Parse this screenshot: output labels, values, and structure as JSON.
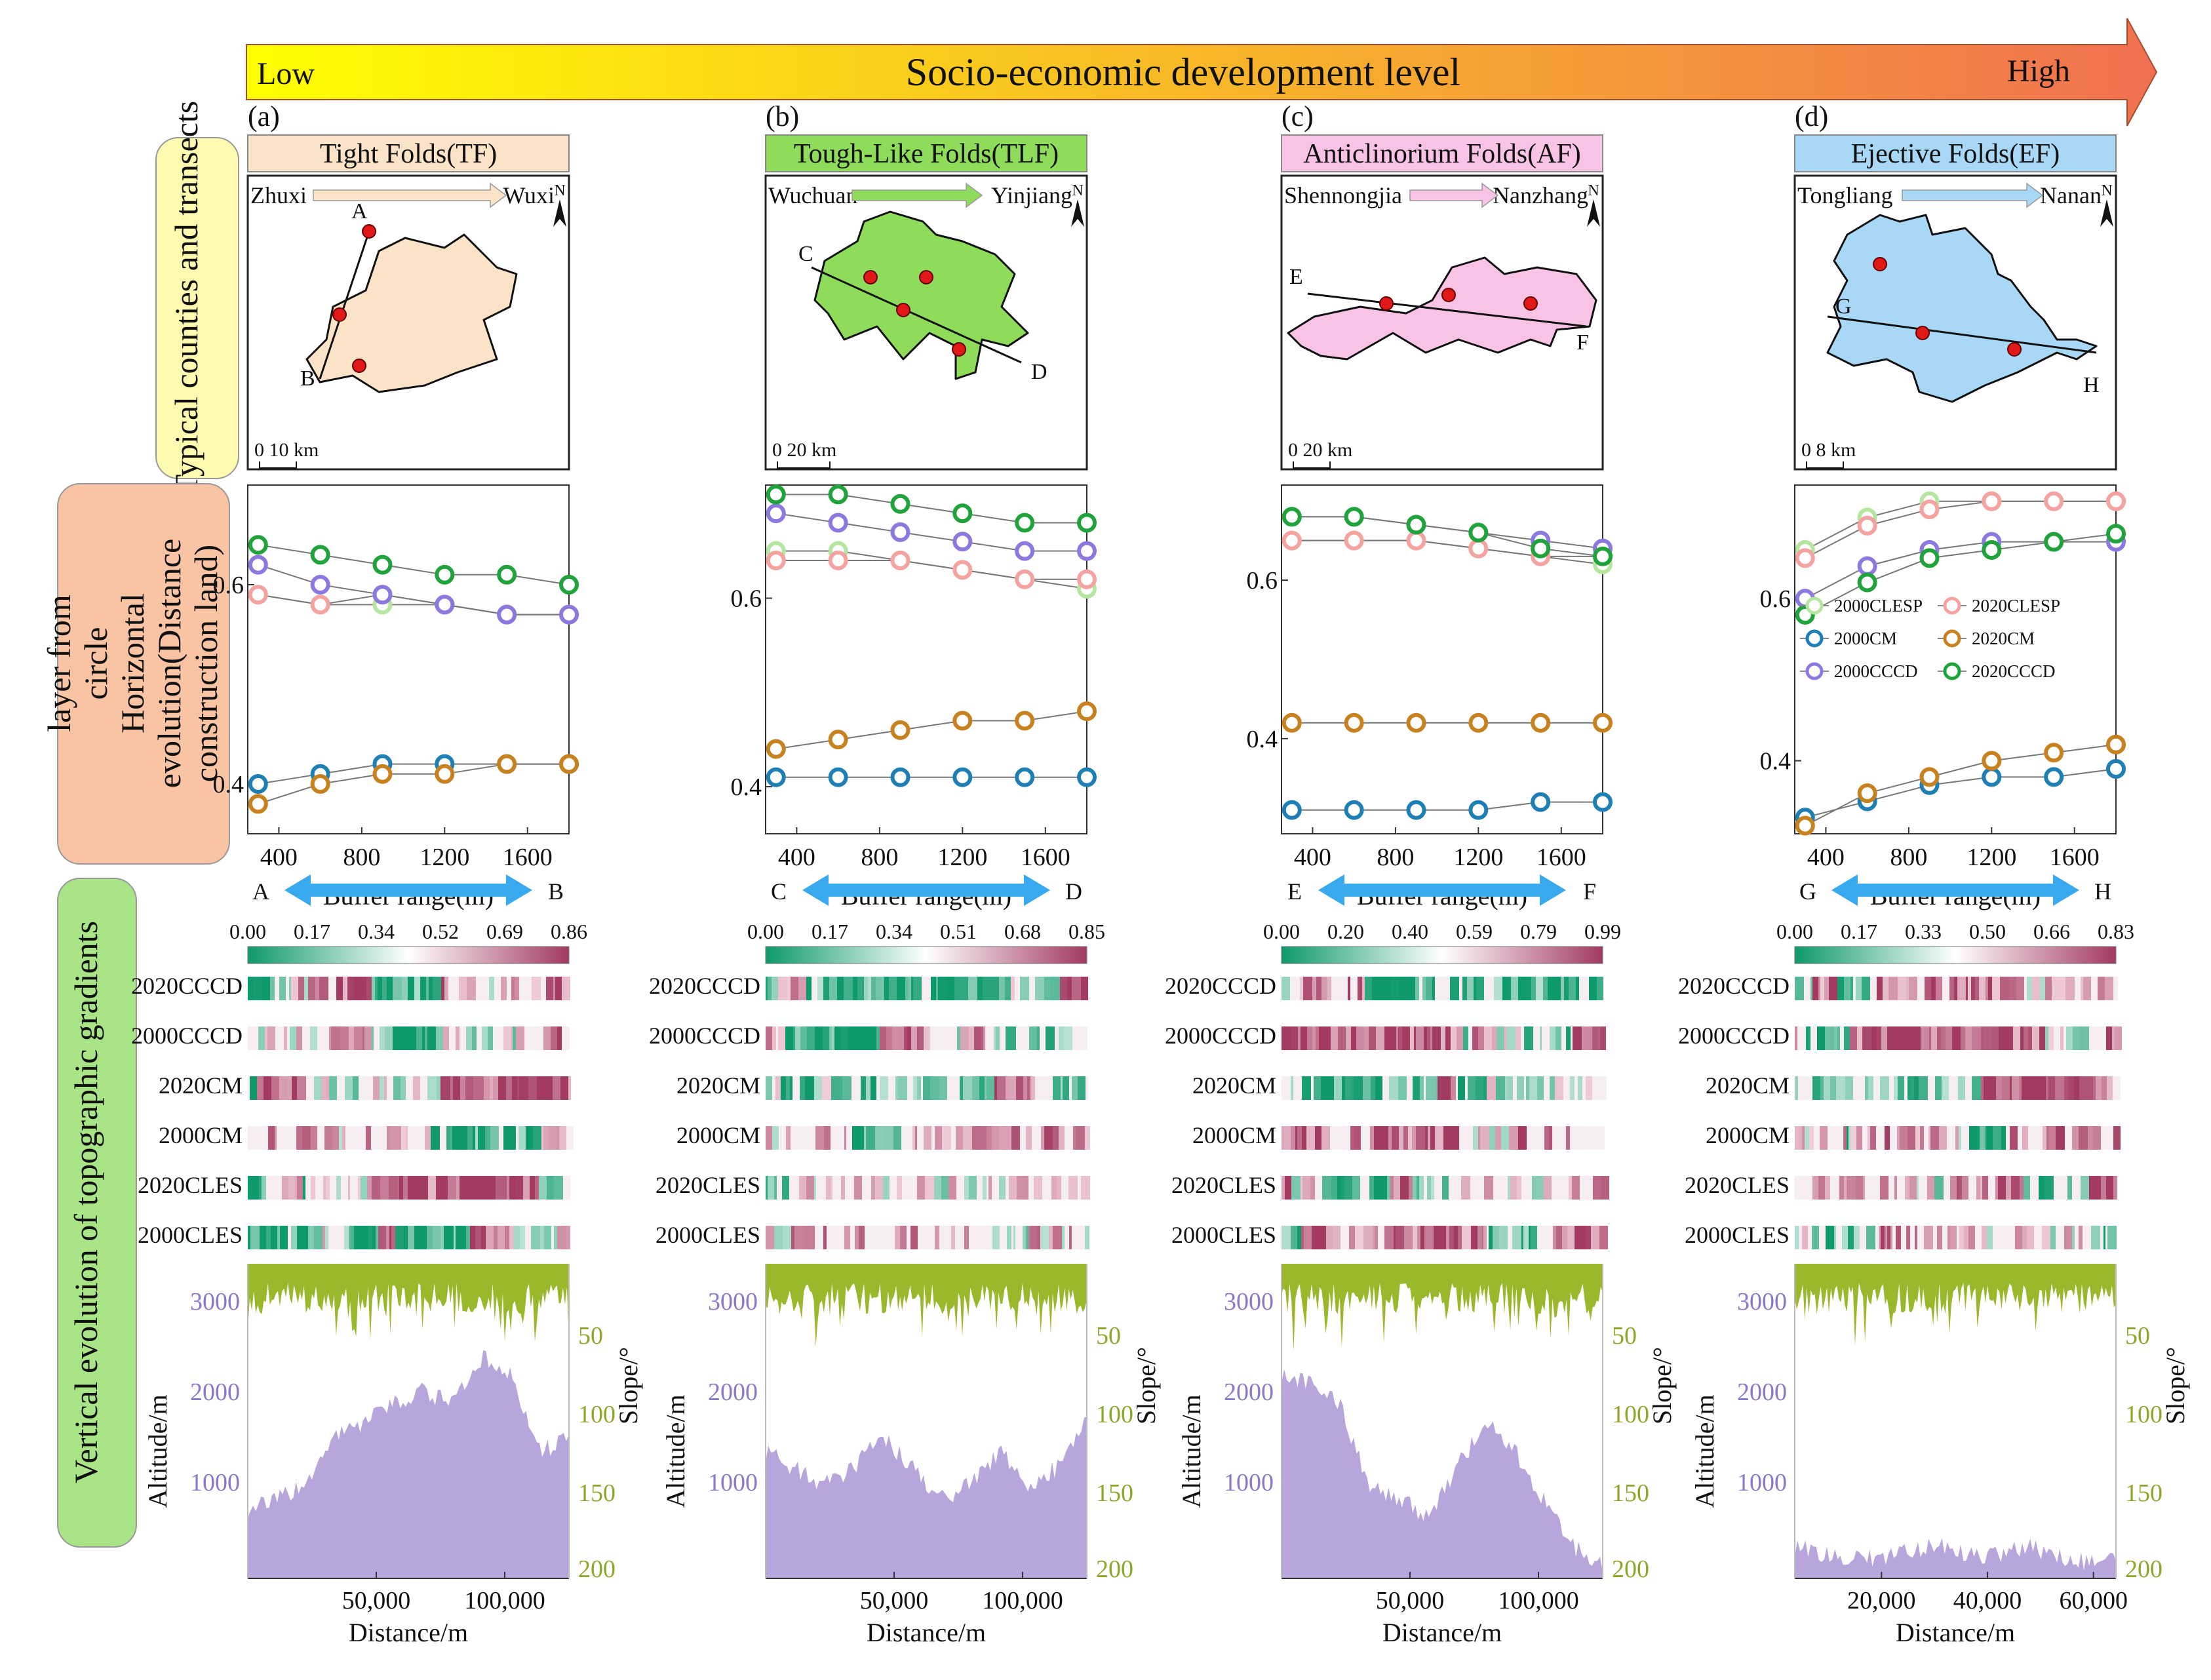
{
  "header": {
    "title": "Socio-economic development level",
    "low": "Low",
    "high": "High",
    "gradient_from": "#ffff00",
    "gradient_to": "#f07050"
  },
  "row_labels": {
    "maps": "Typical counties and transects",
    "horizontal": [
      "layer from",
      "circle",
      "Horizontal",
      "evolution(Distance",
      "construction land)"
    ],
    "vertical": "Vertical evolution of topographic gradients"
  },
  "legend": {
    "items": [
      {
        "label": "2000CLESP",
        "color": "#b5e6a0"
      },
      {
        "label": "2020CLESP",
        "color": "#f5a3a0"
      },
      {
        "label": "2000CM",
        "color": "#1e7fb5"
      },
      {
        "label": "2020CM",
        "color": "#c8811f"
      },
      {
        "label": "2000CCCD",
        "color": "#8d78e0"
      },
      {
        "label": "2020CCCD",
        "color": "#1fa33a"
      }
    ]
  },
  "panels": [
    {
      "letter": "(a)",
      "name": "Tight Folds(TF)",
      "fill": "#fbe3c8",
      "shape_fill": "#fbe3c8",
      "from": "Zhuxi",
      "to": "Wuxi",
      "arrow_color": "#fbe3c8",
      "ends": [
        "A",
        "B"
      ],
      "scale_label": "0  10 km",
      "north": "N",
      "buffer_xlabel": "Buffer range(m)",
      "color_scale": [
        "0.00",
        "0.17",
        "0.34",
        "0.52",
        "0.69",
        "0.86"
      ],
      "profile_xticks": [
        "50,000",
        "100,000"
      ],
      "profile_xlabel": "Distance/m",
      "alt_label": "Altitude/m",
      "slope_label": "Slope/°",
      "alt_ticks": [
        "3000",
        "2000",
        "1000"
      ],
      "slope_ticks": [
        "50",
        "100",
        "150",
        "200"
      ],
      "seed": 11
    },
    {
      "letter": "(b)",
      "name": "Tough-Like Folds(TLF)",
      "fill": "#8fdc5a",
      "shape_fill": "#8fdc5a",
      "from": "Wuchuan",
      "to": "Yinjiang",
      "arrow_color": "#8fdc5a",
      "ends": [
        "C",
        "D"
      ],
      "scale_label": "0    20 km",
      "north": "N",
      "buffer_xlabel": "Buffer range(m)",
      "color_scale": [
        "0.00",
        "0.17",
        "0.34",
        "0.51",
        "0.68",
        "0.85"
      ],
      "profile_xticks": [
        "50,000",
        "100,000"
      ],
      "profile_xlabel": "Distance/m",
      "alt_label": "Altitude/m",
      "slope_label": "Slope/°",
      "alt_ticks": [
        "3000",
        "2000",
        "1000"
      ],
      "slope_ticks": [
        "50",
        "100",
        "150",
        "200"
      ],
      "seed": 23
    },
    {
      "letter": "(c)",
      "name": "Anticlinorium Folds(AF)",
      "fill": "#f9c3e6",
      "shape_fill": "#f9c3e6",
      "from": "Shennongjia",
      "to": "Nanzhang",
      "arrow_color": "#f9c3e6",
      "ends": [
        "E",
        "F"
      ],
      "scale_label": "0   20 km",
      "north": "N",
      "buffer_xlabel": "Buffer range(m)",
      "color_scale": [
        "0.00",
        "0.20",
        "0.40",
        "0.59",
        "0.79",
        "0.99"
      ],
      "profile_xticks": [
        "50,000",
        "100,000"
      ],
      "profile_xlabel": "Distance/m",
      "alt_label": "Altitude/m",
      "slope_label": "Slope/°",
      "alt_ticks": [
        "3000",
        "2000",
        "1000"
      ],
      "slope_ticks": [
        "50",
        "100",
        "150",
        "200"
      ],
      "seed": 37
    },
    {
      "letter": "(d)",
      "name": "Ejective Folds(EF)",
      "fill": "#a8d8f5",
      "shape_fill": "#a8d8f5",
      "from": "Tongliang",
      "to": "Nanan",
      "arrow_color": "#a8d8f5",
      "ends": [
        "G",
        "H"
      ],
      "scale_label": "0   8 km",
      "north": "N",
      "buffer_xlabel": "Buffer range(m)",
      "color_scale": [
        "0.00",
        "0.17",
        "0.33",
        "0.50",
        "0.66",
        "0.83"
      ],
      "profile_xticks": [
        "20,000",
        "40,000",
        "60,000"
      ],
      "profile_xlabel": "Distance/m",
      "alt_label": "Altitude/m",
      "slope_label": "Slope/°",
      "alt_ticks": [
        "3000",
        "2000",
        "1000"
      ],
      "slope_ticks": [
        "50",
        "100",
        "150",
        "200"
      ],
      "seed": 53
    }
  ],
  "heatmap_rows": [
    "2020CCCD",
    "2000CCCD",
    "2020CM",
    "2000CM",
    "2020CLES",
    "2000CLES"
  ],
  "chart_data": [
    {
      "type": "line",
      "title": "(a) Tight Folds(TF) horizontal evolution",
      "xlabel": "Buffer range(m)",
      "xlim": [
        250,
        1800
      ],
      "ylim": [
        0.35,
        0.7
      ],
      "x": [
        300,
        600,
        900,
        1200,
        1500,
        1800
      ],
      "xticks": [
        400,
        800,
        1200,
        1600
      ],
      "yticks": [
        0.4,
        0.6
      ],
      "series": [
        {
          "name": "2000CLESP",
          "values": [
            0.59,
            0.58,
            0.58,
            0.58,
            0.57,
            0.57
          ]
        },
        {
          "name": "2020CLESP",
          "values": [
            0.59,
            0.58,
            0.59,
            0.58,
            0.57,
            0.57
          ]
        },
        {
          "name": "2000CM",
          "values": [
            0.4,
            0.41,
            0.42,
            0.42,
            0.42,
            0.42
          ]
        },
        {
          "name": "2020CM",
          "values": [
            0.38,
            0.4,
            0.41,
            0.41,
            0.42,
            0.42
          ]
        },
        {
          "name": "2000CCCD",
          "values": [
            0.62,
            0.6,
            0.59,
            0.58,
            0.57,
            0.57
          ]
        },
        {
          "name": "2020CCCD",
          "values": [
            0.64,
            0.63,
            0.62,
            0.61,
            0.61,
            0.6
          ]
        }
      ]
    },
    {
      "type": "line",
      "title": "(b) Tough-Like Folds(TLF) horizontal evolution",
      "xlabel": "Buffer range(m)",
      "xlim": [
        250,
        1800
      ],
      "ylim": [
        0.35,
        0.72
      ],
      "x": [
        300,
        600,
        900,
        1200,
        1500,
        1800
      ],
      "xticks": [
        400,
        800,
        1200,
        1600
      ],
      "yticks": [
        0.4,
        0.6
      ],
      "series": [
        {
          "name": "2000CLESP",
          "values": [
            0.65,
            0.65,
            0.64,
            0.63,
            0.62,
            0.61
          ]
        },
        {
          "name": "2020CLESP",
          "values": [
            0.64,
            0.64,
            0.64,
            0.63,
            0.62,
            0.62
          ]
        },
        {
          "name": "2000CM",
          "values": [
            0.41,
            0.41,
            0.41,
            0.41,
            0.41,
            0.41
          ]
        },
        {
          "name": "2020CM",
          "values": [
            0.44,
            0.45,
            0.46,
            0.47,
            0.47,
            0.48
          ]
        },
        {
          "name": "2000CCCD",
          "values": [
            0.69,
            0.68,
            0.67,
            0.66,
            0.65,
            0.65
          ]
        },
        {
          "name": "2020CCCD",
          "values": [
            0.71,
            0.71,
            0.7,
            0.69,
            0.68,
            0.68
          ]
        }
      ]
    },
    {
      "type": "line",
      "title": "(c) Anticlinorium Folds(AF) horizontal evolution",
      "xlabel": "Buffer range(m)",
      "xlim": [
        250,
        1800
      ],
      "ylim": [
        0.28,
        0.72
      ],
      "x": [
        300,
        600,
        900,
        1200,
        1500,
        1800
      ],
      "xticks": [
        400,
        800,
        1200,
        1600
      ],
      "yticks": [
        0.4,
        0.6
      ],
      "series": [
        {
          "name": "2000CLESP",
          "values": [
            0.65,
            0.65,
            0.65,
            0.64,
            0.63,
            0.62
          ]
        },
        {
          "name": "2020CLESP",
          "values": [
            0.65,
            0.65,
            0.65,
            0.64,
            0.63,
            0.63
          ]
        },
        {
          "name": "2000CM",
          "values": [
            0.31,
            0.31,
            0.31,
            0.31,
            0.32,
            0.32
          ]
        },
        {
          "name": "2020CM",
          "values": [
            0.42,
            0.42,
            0.42,
            0.42,
            0.42,
            0.42
          ]
        },
        {
          "name": "2000CCCD",
          "values": [
            0.68,
            0.68,
            0.67,
            0.66,
            0.65,
            0.64
          ]
        },
        {
          "name": "2020CCCD",
          "values": [
            0.68,
            0.68,
            0.67,
            0.66,
            0.64,
            0.63
          ]
        }
      ]
    },
    {
      "type": "line",
      "title": "(d) Ejective Folds(EF) horizontal evolution",
      "xlabel": "Buffer range(m)",
      "xlim": [
        250,
        1800
      ],
      "ylim": [
        0.31,
        0.74
      ],
      "x": [
        300,
        600,
        900,
        1200,
        1500,
        1800
      ],
      "xticks": [
        400,
        800,
        1200,
        1600
      ],
      "yticks": [
        0.4,
        0.6
      ],
      "series": [
        {
          "name": "2000CLESP",
          "values": [
            0.66,
            0.7,
            0.72,
            0.72,
            0.72,
            0.72
          ]
        },
        {
          "name": "2020CLESP",
          "values": [
            0.65,
            0.69,
            0.71,
            0.72,
            0.72,
            0.72
          ]
        },
        {
          "name": "2000CM",
          "values": [
            0.33,
            0.35,
            0.37,
            0.38,
            0.38,
            0.39
          ]
        },
        {
          "name": "2020CM",
          "values": [
            0.32,
            0.36,
            0.38,
            0.4,
            0.41,
            0.42
          ]
        },
        {
          "name": "2000CCCD",
          "values": [
            0.6,
            0.64,
            0.66,
            0.67,
            0.67,
            0.67
          ]
        },
        {
          "name": "2020CCCD",
          "values": [
            0.58,
            0.62,
            0.65,
            0.66,
            0.67,
            0.68
          ]
        }
      ]
    }
  ]
}
